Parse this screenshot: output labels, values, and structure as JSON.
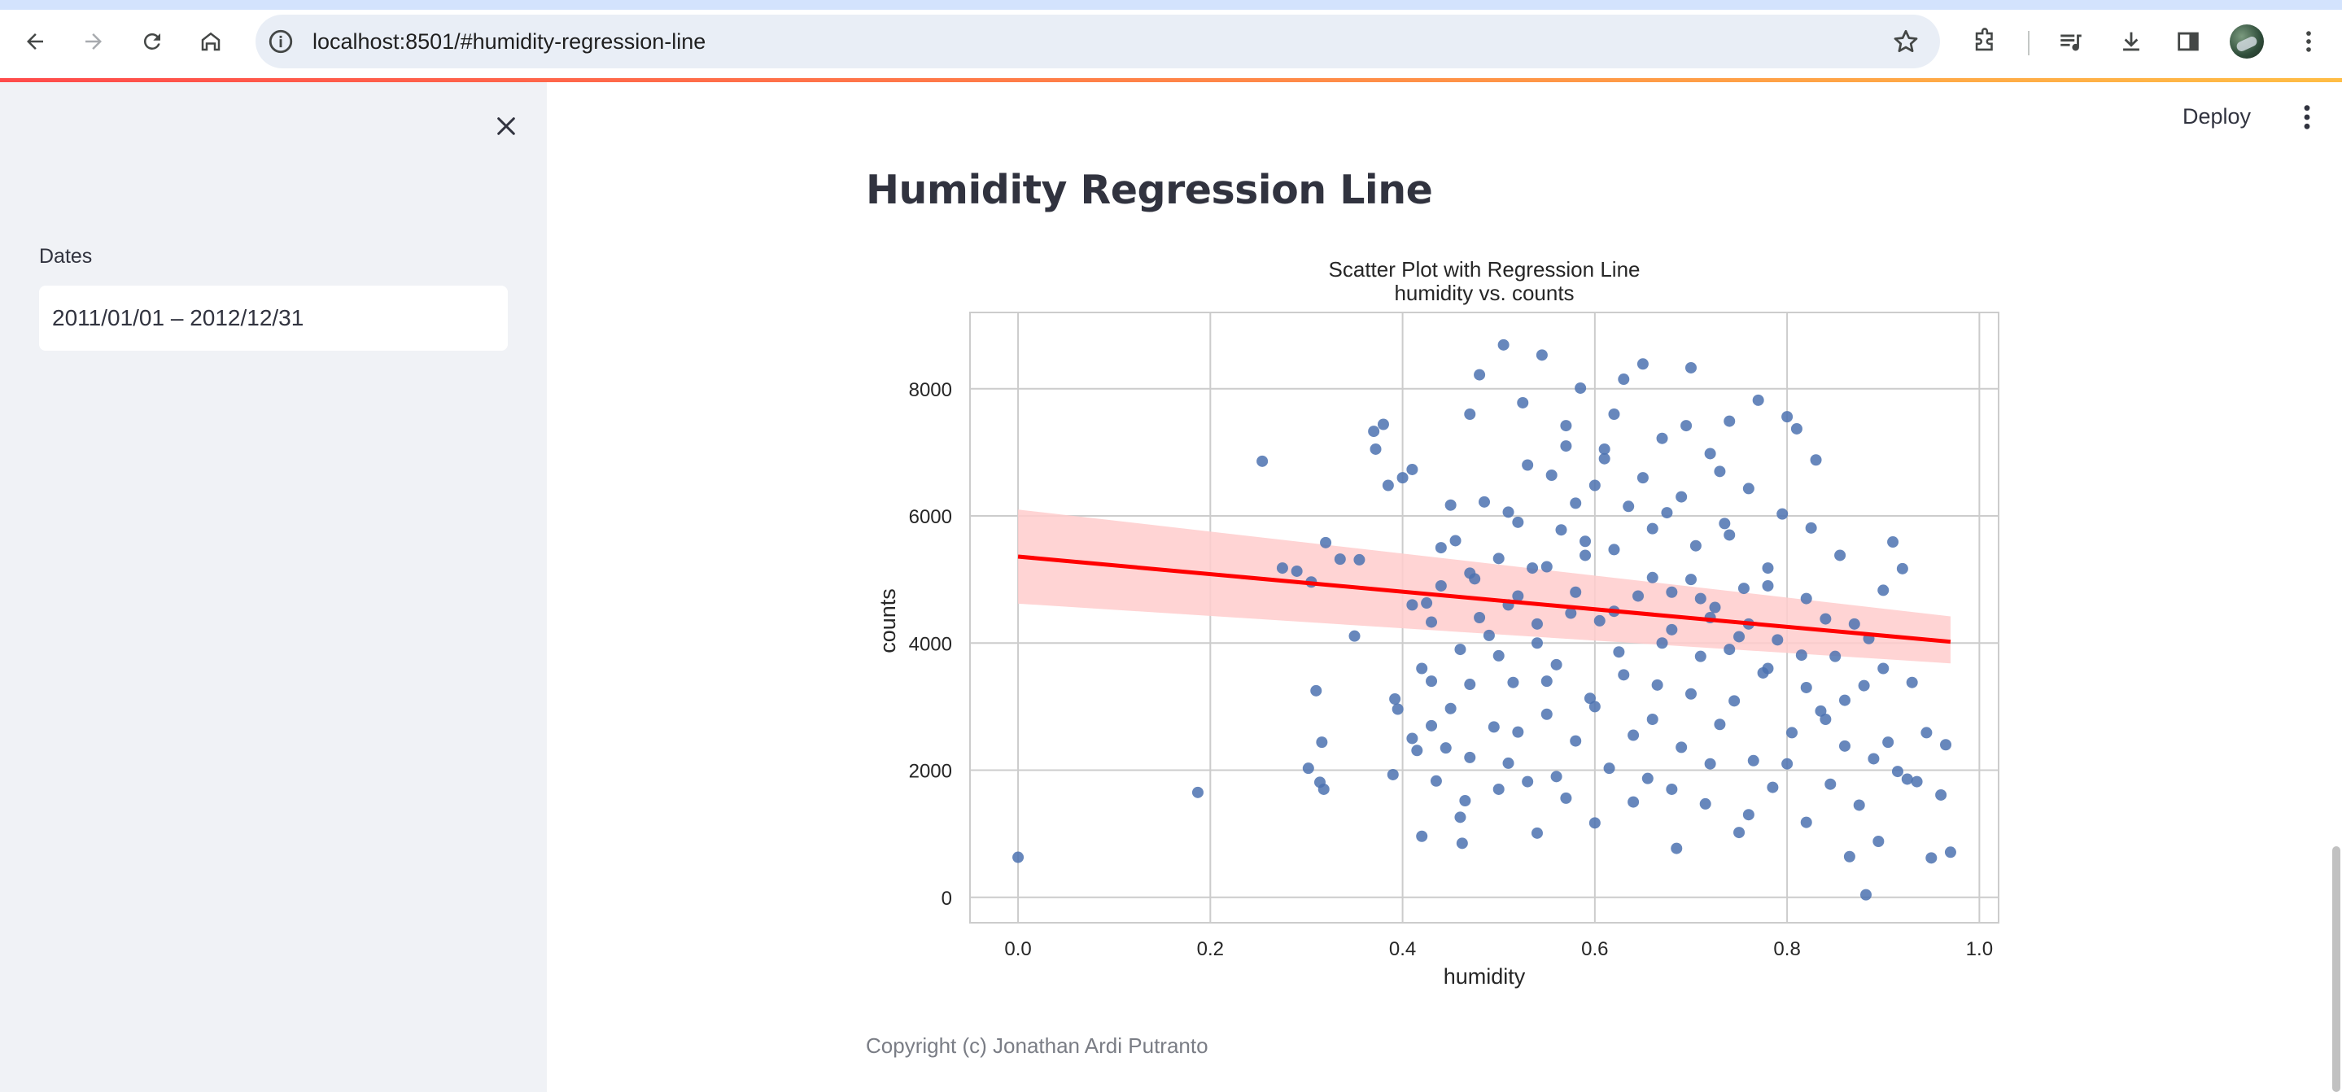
{
  "browser": {
    "url": "localhost:8501/#humidity-regression-line",
    "icons": [
      "back-icon",
      "forward-icon",
      "reload-icon",
      "home-icon",
      "site-info-icon",
      "bookmark-star-icon",
      "extensions-icon",
      "media-icon",
      "download-icon",
      "side-panel-icon",
      "profile-avatar",
      "chrome-menu-icon"
    ]
  },
  "sidebar": {
    "dates_label": "Dates",
    "dates_value": "2011/01/01 – 2012/12/31"
  },
  "header": {
    "deploy_label": "Deploy"
  },
  "main": {
    "title": "Humidity Regression Line",
    "footer": "Copyright (c) Jonathan Ardi Putranto"
  },
  "colors": {
    "accent_red": "#ff4b4b",
    "point": "#4c72b0",
    "regression_line": "#ff0000",
    "confidence_band": "#ffcccc"
  },
  "chart_data": {
    "type": "scatter",
    "title": "Scatter Plot with Regression Line",
    "subtitle": "humidity vs. counts",
    "xlabel": "humidity",
    "ylabel": "counts",
    "xlim": [
      -0.05,
      1.02
    ],
    "ylim": [
      -400,
      9200
    ],
    "xticks": [
      "0.0",
      "0.2",
      "0.4",
      "0.6",
      "0.8",
      "1.0"
    ],
    "yticks": [
      "0",
      "2000",
      "4000",
      "6000",
      "8000"
    ],
    "grid": true,
    "regression": {
      "x": [
        0.0,
        0.97
      ],
      "y": [
        5360,
        4020
      ],
      "ci_low": [
        4620,
        3680
      ],
      "ci_high": [
        6100,
        4420
      ]
    },
    "points": [
      [
        0.0,
        630
      ],
      [
        0.187,
        1650
      ],
      [
        0.254,
        6860
      ],
      [
        0.275,
        5180
      ],
      [
        0.29,
        5130
      ],
      [
        0.305,
        4960
      ],
      [
        0.302,
        2030
      ],
      [
        0.31,
        3250
      ],
      [
        0.314,
        1810
      ],
      [
        0.316,
        2440
      ],
      [
        0.318,
        1700
      ],
      [
        0.32,
        5580
      ],
      [
        0.335,
        5320
      ],
      [
        0.35,
        4110
      ],
      [
        0.355,
        5310
      ],
      [
        0.37,
        7330
      ],
      [
        0.372,
        7050
      ],
      [
        0.38,
        7440
      ],
      [
        0.385,
        6480
      ],
      [
        0.39,
        1930
      ],
      [
        0.392,
        3120
      ],
      [
        0.395,
        2960
      ],
      [
        0.4,
        6600
      ],
      [
        0.41,
        6730
      ],
      [
        0.41,
        2500
      ],
      [
        0.415,
        2310
      ],
      [
        0.42,
        960
      ],
      [
        0.42,
        3600
      ],
      [
        0.425,
        4630
      ],
      [
        0.43,
        4330
      ],
      [
        0.43,
        3400
      ],
      [
        0.435,
        1830
      ],
      [
        0.44,
        4900
      ],
      [
        0.445,
        2350
      ],
      [
        0.45,
        6170
      ],
      [
        0.45,
        2970
      ],
      [
        0.455,
        5610
      ],
      [
        0.46,
        1260
      ],
      [
        0.462,
        850
      ],
      [
        0.465,
        1520
      ],
      [
        0.47,
        3350
      ],
      [
        0.47,
        7600
      ],
      [
        0.475,
        5010
      ],
      [
        0.48,
        8220
      ],
      [
        0.485,
        6220
      ],
      [
        0.49,
        4120
      ],
      [
        0.495,
        2680
      ],
      [
        0.5,
        5330
      ],
      [
        0.505,
        8690
      ],
      [
        0.51,
        6060
      ],
      [
        0.51,
        2110
      ],
      [
        0.515,
        3380
      ],
      [
        0.52,
        4740
      ],
      [
        0.525,
        7780
      ],
      [
        0.53,
        1820
      ],
      [
        0.535,
        5180
      ],
      [
        0.54,
        4000
      ],
      [
        0.54,
        1010
      ],
      [
        0.545,
        8530
      ],
      [
        0.55,
        2880
      ],
      [
        0.555,
        6640
      ],
      [
        0.56,
        3660
      ],
      [
        0.565,
        5780
      ],
      [
        0.57,
        7420
      ],
      [
        0.57,
        1560
      ],
      [
        0.575,
        4470
      ],
      [
        0.58,
        2460
      ],
      [
        0.585,
        8010
      ],
      [
        0.59,
        5380
      ],
      [
        0.595,
        3130
      ],
      [
        0.6,
        6480
      ],
      [
        0.6,
        1170
      ],
      [
        0.605,
        4350
      ],
      [
        0.61,
        7050
      ],
      [
        0.615,
        2030
      ],
      [
        0.62,
        5470
      ],
      [
        0.625,
        3860
      ],
      [
        0.63,
        8150
      ],
      [
        0.635,
        6150
      ],
      [
        0.64,
        2550
      ],
      [
        0.645,
        4740
      ],
      [
        0.65,
        8390
      ],
      [
        0.655,
        1870
      ],
      [
        0.66,
        5030
      ],
      [
        0.665,
        3340
      ],
      [
        0.67,
        7220
      ],
      [
        0.675,
        6050
      ],
      [
        0.68,
        4210
      ],
      [
        0.685,
        770
      ],
      [
        0.69,
        2360
      ],
      [
        0.695,
        7420
      ],
      [
        0.7,
        8330
      ],
      [
        0.705,
        5530
      ],
      [
        0.71,
        3790
      ],
      [
        0.715,
        1470
      ],
      [
        0.72,
        6980
      ],
      [
        0.725,
        4560
      ],
      [
        0.73,
        2720
      ],
      [
        0.735,
        5880
      ],
      [
        0.74,
        7490
      ],
      [
        0.745,
        3090
      ],
      [
        0.75,
        1020
      ],
      [
        0.755,
        4860
      ],
      [
        0.76,
        6430
      ],
      [
        0.765,
        2150
      ],
      [
        0.77,
        7820
      ],
      [
        0.775,
        3530
      ],
      [
        0.78,
        5180
      ],
      [
        0.785,
        1730
      ],
      [
        0.79,
        4050
      ],
      [
        0.795,
        6030
      ],
      [
        0.8,
        7560
      ],
      [
        0.805,
        2590
      ],
      [
        0.81,
        7370
      ],
      [
        0.815,
        3810
      ],
      [
        0.82,
        1180
      ],
      [
        0.825,
        5810
      ],
      [
        0.83,
        6880
      ],
      [
        0.835,
        2930
      ],
      [
        0.84,
        4380
      ],
      [
        0.845,
        1780
      ],
      [
        0.85,
        3790
      ],
      [
        0.855,
        5380
      ],
      [
        0.86,
        2380
      ],
      [
        0.865,
        640
      ],
      [
        0.87,
        4300
      ],
      [
        0.875,
        1450
      ],
      [
        0.88,
        3330
      ],
      [
        0.882,
        40
      ],
      [
        0.885,
        4070
      ],
      [
        0.89,
        2180
      ],
      [
        0.895,
        880
      ],
      [
        0.9,
        4830
      ],
      [
        0.905,
        2440
      ],
      [
        0.91,
        5590
      ],
      [
        0.915,
        1980
      ],
      [
        0.92,
        5170
      ],
      [
        0.925,
        1860
      ],
      [
        0.93,
        3380
      ],
      [
        0.935,
        1820
      ],
      [
        0.945,
        2590
      ],
      [
        0.95,
        620
      ],
      [
        0.96,
        1610
      ],
      [
        0.965,
        2400
      ],
      [
        0.97,
        710
      ],
      [
        0.47,
        5100
      ],
      [
        0.52,
        5900
      ],
      [
        0.58,
        4800
      ],
      [
        0.62,
        4500
      ],
      [
        0.68,
        4800
      ],
      [
        0.72,
        4400
      ],
      [
        0.76,
        4300
      ],
      [
        0.5,
        3800
      ],
      [
        0.55,
        3400
      ],
      [
        0.6,
        3000
      ],
      [
        0.66,
        2800
      ],
      [
        0.7,
        3200
      ],
      [
        0.74,
        3900
      ],
      [
        0.78,
        3600
      ],
      [
        0.82,
        3300
      ],
      [
        0.53,
        6800
      ],
      [
        0.57,
        7100
      ],
      [
        0.61,
        6900
      ],
      [
        0.65,
        6600
      ],
      [
        0.69,
        6300
      ],
      [
        0.73,
        6700
      ],
      [
        0.44,
        5500
      ],
      [
        0.48,
        4400
      ],
      [
        0.52,
        2600
      ],
      [
        0.56,
        1900
      ],
      [
        0.64,
        1500
      ],
      [
        0.68,
        1700
      ],
      [
        0.72,
        2100
      ],
      [
        0.76,
        1300
      ],
      [
        0.8,
        2100
      ],
      [
        0.84,
        2800
      ],
      [
        0.46,
        3900
      ],
      [
        0.5,
        1700
      ],
      [
        0.54,
        4300
      ],
      [
        0.58,
        6200
      ],
      [
        0.62,
        7600
      ],
      [
        0.66,
        5800
      ],
      [
        0.7,
        5000
      ],
      [
        0.74,
        5700
      ],
      [
        0.78,
        4900
      ],
      [
        0.82,
        4700
      ],
      [
        0.86,
        3100
      ],
      [
        0.9,
        3600
      ],
      [
        0.63,
        3500
      ],
      [
        0.67,
        4000
      ],
      [
        0.71,
        4700
      ],
      [
        0.75,
        4100
      ],
      [
        0.59,
        5600
      ],
      [
        0.55,
        5200
      ],
      [
        0.51,
        4600
      ],
      [
        0.47,
        2200
      ],
      [
        0.43,
        2700
      ],
      [
        0.41,
        4600
      ]
    ]
  }
}
